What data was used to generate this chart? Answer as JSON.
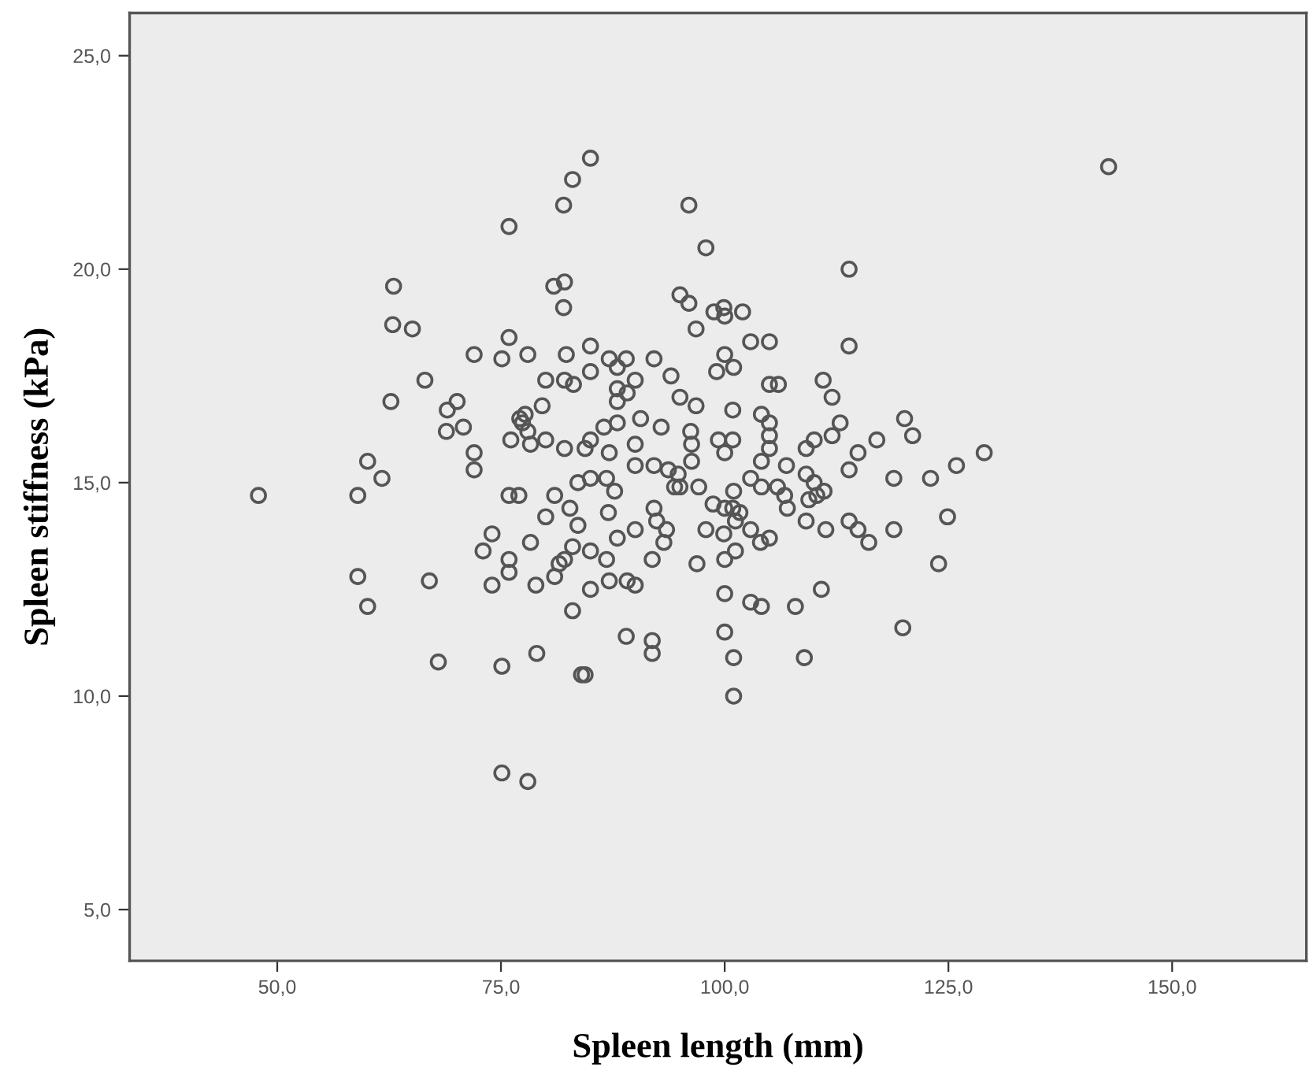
{
  "chart_data": {
    "type": "scatter",
    "xlabel": "Spleen length (mm)",
    "ylabel": "Spleen stiffness (kPa)",
    "xlim": [
      33.5,
      165
    ],
    "ylim": [
      3.8,
      26.0
    ],
    "xticks": [
      {
        "value": 50,
        "label": "50,0"
      },
      {
        "value": 75,
        "label": "75,0"
      },
      {
        "value": 100,
        "label": "100,0"
      },
      {
        "value": 125,
        "label": "125,0"
      },
      {
        "value": 150,
        "label": "150,0"
      }
    ],
    "yticks": [
      {
        "value": 5,
        "label": "5,0"
      },
      {
        "value": 10,
        "label": "10,0"
      },
      {
        "value": 15,
        "label": "15,0"
      },
      {
        "value": 20,
        "label": "20,0"
      },
      {
        "value": 25,
        "label": "25,0"
      }
    ],
    "grid": false,
    "marker": "circle",
    "series": [
      {
        "color": "#555555",
        "x": [
          82.0,
          83.0,
          75.9,
          63.0,
          80.9,
          82.1,
          82.0,
          62.9,
          65.1,
          75.9,
          72.0,
          75.1,
          78.0,
          82.3,
          66.5,
          80.0,
          82.1,
          83.1,
          62.7,
          70.1,
          69.0,
          79.6,
          68.9,
          70.8,
          77.4,
          78.0,
          77.1,
          77.7,
          76.1,
          78.3,
          80.0,
          82.1,
          72.0,
          72.0,
          60.1,
          61.7,
          47.9,
          59.0,
          75.9,
          77.0,
          81.0,
          80.0,
          82.7,
          83.6,
          83.6,
          74.0,
          73.0,
          78.3,
          75.9,
          75.9,
          74.0,
          78.9,
          81.0,
          81.5,
          82.1,
          83.0,
          83.0,
          59.0,
          60.1,
          67.0,
          68.0,
          75.1,
          79.0,
          84.0,
          75.1,
          78.0,
          85.0,
          96.0,
          97.9,
          113.9,
          95.0,
          96.0,
          98.8,
          99.9,
          100.0,
          102.0,
          96.8,
          102.9,
          105.0,
          113.9,
          85.0,
          85.0,
          87.1,
          89.0,
          88.0,
          92.1,
          90.0,
          88.0,
          89.1,
          88.0,
          94.0,
          95.0,
          96.8,
          100.0,
          99.1,
          101.0,
          105.0,
          106.0,
          111.0,
          112.0,
          120.1,
          121.0,
          129.0,
          125.9,
          123.0,
          118.9,
          124.9,
          123.9,
          119.9,
          118.9,
          117.0,
          114.9,
          113.9,
          112.9,
          112.0,
          110.0,
          109.1,
          113.9,
          114.9,
          116.1,
          111.3,
          110.8,
          107.9,
          108.9,
          102.9,
          104.1,
          100.0,
          100.0,
          101.0,
          101.0,
          89.0,
          91.9,
          91.9,
          84.4,
          96.9,
          100.0,
          101.2,
          104.0,
          105.0,
          97.9,
          99.9,
          101.2,
          100.9,
          101.7,
          102.9,
          100.0,
          101.0,
          98.7,
          97.1,
          94.8,
          95.0,
          94.4,
          96.3,
          96.3,
          96.2,
          92.9,
          90.6,
          90.0,
          90.0,
          92.1,
          93.7,
          88.0,
          86.5,
          87.1,
          85.0,
          84.4,
          85.0,
          86.8,
          87.7,
          92.1,
          92.4,
          93.5,
          93.2,
          87.0,
          90.0,
          88.0,
          85.0,
          86.8,
          91.9,
          87.1,
          89.1,
          90.0,
          85.0,
          99.3,
          100.9,
          100.0,
          104.1,
          105.0,
          105.0,
          105.0,
          104.1,
          106.9,
          102.9,
          104.1,
          105.9,
          106.7,
          107.0,
          109.1,
          110.0,
          109.4,
          110.3,
          111.1,
          109.1,
          100.9,
          142.9
        ],
        "values": [
          21.5,
          22.1,
          21.0,
          19.6,
          19.6,
          19.7,
          19.1,
          18.7,
          18.6,
          18.4,
          18.0,
          17.9,
          18.0,
          18.0,
          17.4,
          17.4,
          17.4,
          17.3,
          16.9,
          16.9,
          16.7,
          16.8,
          16.2,
          16.3,
          16.4,
          16.2,
          16.5,
          16.6,
          16.0,
          15.9,
          16.0,
          15.8,
          15.7,
          15.3,
          15.5,
          15.1,
          14.7,
          14.7,
          14.7,
          14.7,
          14.7,
          14.2,
          14.4,
          14.0,
          15.0,
          13.8,
          13.4,
          13.6,
          13.2,
          12.9,
          12.6,
          12.6,
          12.8,
          13.1,
          13.2,
          13.5,
          12.0,
          12.8,
          12.1,
          12.7,
          10.8,
          10.7,
          11.0,
          10.5,
          8.2,
          8.0,
          22.6,
          21.5,
          20.5,
          20.0,
          19.4,
          19.2,
          19.0,
          19.1,
          18.9,
          19.0,
          18.6,
          18.3,
          18.3,
          18.2,
          18.2,
          17.6,
          17.9,
          17.9,
          17.7,
          17.9,
          17.4,
          17.2,
          17.1,
          16.9,
          17.5,
          17.0,
          16.8,
          18.0,
          17.6,
          17.7,
          17.3,
          17.3,
          17.4,
          17.0,
          16.5,
          16.1,
          15.7,
          15.4,
          15.1,
          15.1,
          14.2,
          13.1,
          11.6,
          13.9,
          16.0,
          15.7,
          15.3,
          16.4,
          16.1,
          16.0,
          15.8,
          14.1,
          13.9,
          13.6,
          13.9,
          12.5,
          12.1,
          10.9,
          12.2,
          12.1,
          12.4,
          11.5,
          10.9,
          10.0,
          11.4,
          11.3,
          11.0,
          10.5,
          13.1,
          13.2,
          13.4,
          13.6,
          13.7,
          13.9,
          13.8,
          14.1,
          14.4,
          14.3,
          13.9,
          14.4,
          14.8,
          14.5,
          14.9,
          15.2,
          14.9,
          14.9,
          15.5,
          15.9,
          16.2,
          16.3,
          16.5,
          15.9,
          15.4,
          15.4,
          15.3,
          16.4,
          16.3,
          15.7,
          16.0,
          15.8,
          15.1,
          15.1,
          14.8,
          14.4,
          14.1,
          13.9,
          13.6,
          14.3,
          13.9,
          13.7,
          13.4,
          13.2,
          13.2,
          12.7,
          12.7,
          12.6,
          12.5,
          16.0,
          16.0,
          15.7,
          16.6,
          16.4,
          16.1,
          15.8,
          15.5,
          15.4,
          15.1,
          14.9,
          14.9,
          14.7,
          14.4,
          15.2,
          15.0,
          14.6,
          14.7,
          14.8,
          14.1,
          16.7,
          22.4
        ]
      }
    ]
  }
}
